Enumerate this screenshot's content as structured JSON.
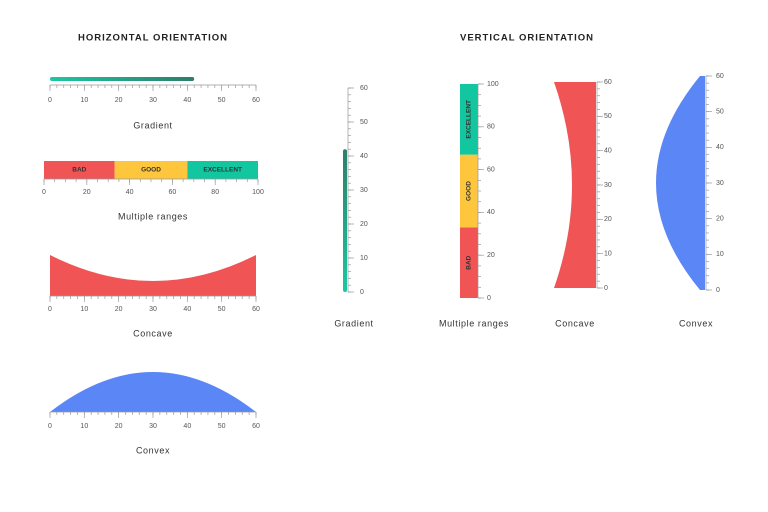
{
  "headings": {
    "horizontal": "HORIZONTAL ORIENTATION",
    "vertical": "VERTICAL ORIENTATION"
  },
  "gauges": [
    {
      "label": "Gradient",
      "orientation": "horizontal",
      "shape": "bar",
      "min": 0,
      "max": 60,
      "ticks": [
        0,
        10,
        20,
        30,
        40,
        50,
        60
      ],
      "minor_step": 2,
      "value": 42,
      "colors": [
        "#1cc7a4",
        "#2e7d6b"
      ]
    },
    {
      "label": "Multiple ranges",
      "orientation": "horizontal",
      "shape": "ranges",
      "min": 0,
      "max": 100,
      "ticks": [
        0,
        20,
        40,
        60,
        80,
        100
      ],
      "minor_step": 5,
      "ranges": [
        {
          "name": "BAD",
          "from": 0,
          "to": 33,
          "color": "#f05454"
        },
        {
          "name": "GOOD",
          "from": 33,
          "to": 67,
          "color": "#fdc63c"
        },
        {
          "name": "EXCELLENT",
          "from": 67,
          "to": 100,
          "color": "#12c7a0"
        }
      ]
    },
    {
      "label": "Concave",
      "orientation": "horizontal",
      "shape": "concave",
      "min": 0,
      "max": 60,
      "ticks": [
        0,
        10,
        20,
        30,
        40,
        50,
        60
      ],
      "minor_step": 2,
      "color": "#f05454"
    },
    {
      "label": "Convex",
      "orientation": "horizontal",
      "shape": "convex",
      "min": 0,
      "max": 60,
      "ticks": [
        0,
        10,
        20,
        30,
        40,
        50,
        60
      ],
      "minor_step": 2,
      "color": "#5b86f5"
    },
    {
      "label": "Gradient",
      "orientation": "vertical",
      "shape": "bar",
      "min": 0,
      "max": 60,
      "ticks": [
        0,
        10,
        20,
        30,
        40,
        50,
        60
      ],
      "minor_step": 2,
      "value": 42,
      "colors": [
        "#1cc7a4",
        "#2e7d6b"
      ]
    },
    {
      "label": "Multiple ranges",
      "orientation": "vertical",
      "shape": "ranges",
      "min": 0,
      "max": 100,
      "ticks": [
        0,
        20,
        40,
        60,
        80,
        100
      ],
      "minor_step": 5,
      "ranges": [
        {
          "name": "BAD",
          "from": 0,
          "to": 33,
          "color": "#f05454"
        },
        {
          "name": "GOOD",
          "from": 33,
          "to": 67,
          "color": "#fdc63c"
        },
        {
          "name": "EXCELLENT",
          "from": 67,
          "to": 100,
          "color": "#12c7a0"
        }
      ]
    },
    {
      "label": "Concave",
      "orientation": "vertical",
      "shape": "concave",
      "min": 0,
      "max": 60,
      "ticks": [
        0,
        10,
        20,
        30,
        40,
        50,
        60
      ],
      "minor_step": 2,
      "color": "#f05454"
    },
    {
      "label": "Convex",
      "orientation": "vertical",
      "shape": "convex",
      "min": 0,
      "max": 60,
      "ticks": [
        0,
        10,
        20,
        30,
        40,
        50,
        60
      ],
      "minor_step": 2,
      "color": "#5b86f5"
    }
  ]
}
